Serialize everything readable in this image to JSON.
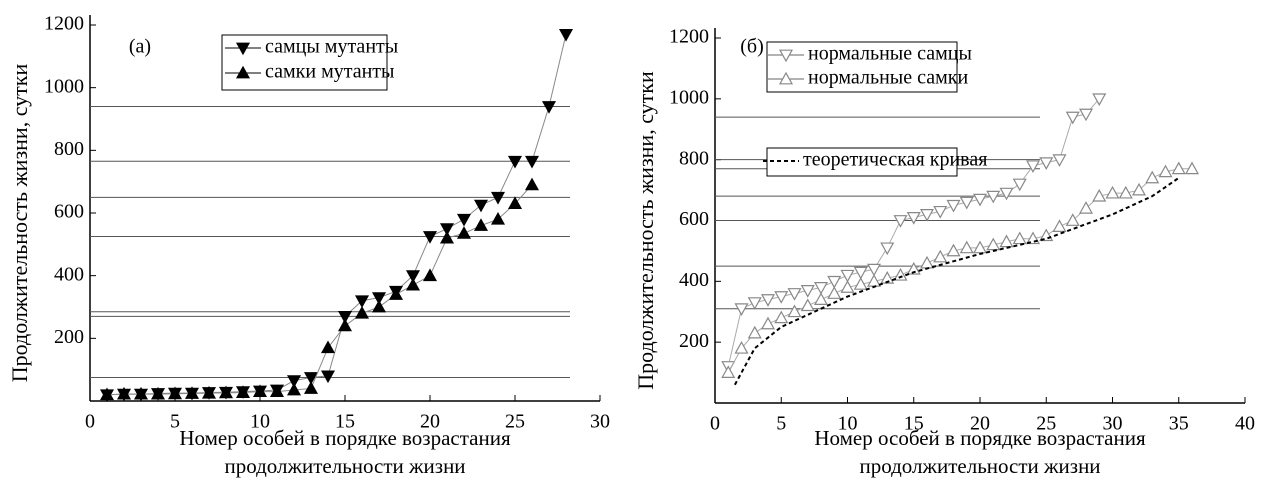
{
  "chart_data": [
    {
      "type": "line",
      "annotation": "(a)",
      "y_label": "Продолжительность жизни, сутки",
      "x_label": [
        "Номер особей в порядке возрастания",
        "продолжительности жизни"
      ],
      "xlim": [
        0,
        30
      ],
      "xticks": [
        0,
        5,
        10,
        15,
        20,
        25,
        30
      ],
      "ylim": [
        0,
        1200
      ],
      "yticks": [
        200,
        400,
        600,
        800,
        1000,
        1200
      ],
      "hlines": [
        75,
        270,
        285,
        525,
        650,
        765,
        940
      ],
      "series": [
        {
          "name": "самцы мутанты",
          "color": "#000000",
          "marker": "triangle-down",
          "filled": true,
          "x": [
            1,
            2,
            3,
            4,
            5,
            6,
            7,
            8,
            9,
            10,
            11,
            12,
            13,
            14,
            15,
            16,
            17,
            18,
            19,
            20,
            21,
            22,
            23,
            24,
            25,
            26,
            27,
            28
          ],
          "values": [
            20,
            22,
            22,
            24,
            25,
            25,
            27,
            28,
            30,
            32,
            35,
            65,
            75,
            80,
            270,
            320,
            330,
            350,
            400,
            525,
            550,
            580,
            625,
            650,
            765,
            765,
            940,
            1170
          ]
        },
        {
          "name": "самки мутанты",
          "color": "#000000",
          "marker": "triangle-up",
          "filled": true,
          "x": [
            1,
            2,
            3,
            4,
            5,
            6,
            7,
            8,
            9,
            10,
            11,
            12,
            13,
            14,
            15,
            16,
            17,
            18,
            19,
            20,
            21,
            22,
            23,
            24,
            25,
            26
          ],
          "values": [
            20,
            22,
            22,
            22,
            23,
            24,
            25,
            26,
            27,
            30,
            30,
            35,
            40,
            170,
            240,
            280,
            300,
            340,
            370,
            400,
            520,
            535,
            560,
            580,
            630,
            690
          ]
        }
      ]
    },
    {
      "type": "line",
      "annotation": "(б)",
      "y_label": "Продолжительность жизни, сутки",
      "x_label": [
        "Номер особей в порядке возрастания",
        "продолжительности жизни"
      ],
      "xlim": [
        0,
        40
      ],
      "xticks": [
        0,
        5,
        10,
        15,
        20,
        25,
        30,
        35,
        40
      ],
      "ylim": [
        0,
        1200
      ],
      "yticks": [
        200,
        400,
        600,
        800,
        1000,
        1200
      ],
      "hlines": [
        310,
        450,
        600,
        680,
        770,
        800,
        940
      ],
      "series": [
        {
          "name": "нормальные самцы",
          "color": "#888888",
          "marker": "triangle-down",
          "filled": false,
          "x": [
            1,
            2,
            3,
            4,
            5,
            6,
            7,
            8,
            9,
            10,
            11,
            12,
            13,
            14,
            15,
            16,
            17,
            18,
            19,
            20,
            21,
            22,
            23,
            24,
            25,
            26,
            27,
            28,
            29
          ],
          "values": [
            120,
            310,
            330,
            340,
            350,
            360,
            370,
            380,
            400,
            420,
            430,
            440,
            510,
            600,
            610,
            620,
            630,
            650,
            660,
            670,
            680,
            690,
            720,
            780,
            790,
            800,
            940,
            950,
            1000
          ]
        },
        {
          "name": "нормальные самки",
          "color": "#888888",
          "marker": "triangle-up",
          "filled": false,
          "x": [
            1,
            2,
            3,
            4,
            5,
            6,
            7,
            8,
            9,
            10,
            11,
            12,
            13,
            14,
            15,
            16,
            17,
            18,
            19,
            20,
            21,
            22,
            23,
            24,
            25,
            26,
            27,
            28,
            29,
            30,
            31,
            32,
            33,
            34,
            35,
            36
          ],
          "values": [
            100,
            180,
            230,
            260,
            280,
            300,
            320,
            340,
            360,
            380,
            390,
            400,
            410,
            420,
            440,
            460,
            480,
            500,
            510,
            510,
            520,
            530,
            540,
            540,
            550,
            580,
            600,
            640,
            680,
            690,
            690,
            700,
            740,
            760,
            770,
            770
          ]
        },
        {
          "name": "теоретическая кривая",
          "color": "#000000",
          "marker": "none",
          "dashed": true,
          "x": [
            1.5,
            3,
            5,
            10,
            15,
            20,
            25,
            30,
            33,
            35
          ],
          "values": [
            60,
            180,
            250,
            350,
            430,
            490,
            540,
            620,
            680,
            740
          ]
        }
      ]
    }
  ]
}
